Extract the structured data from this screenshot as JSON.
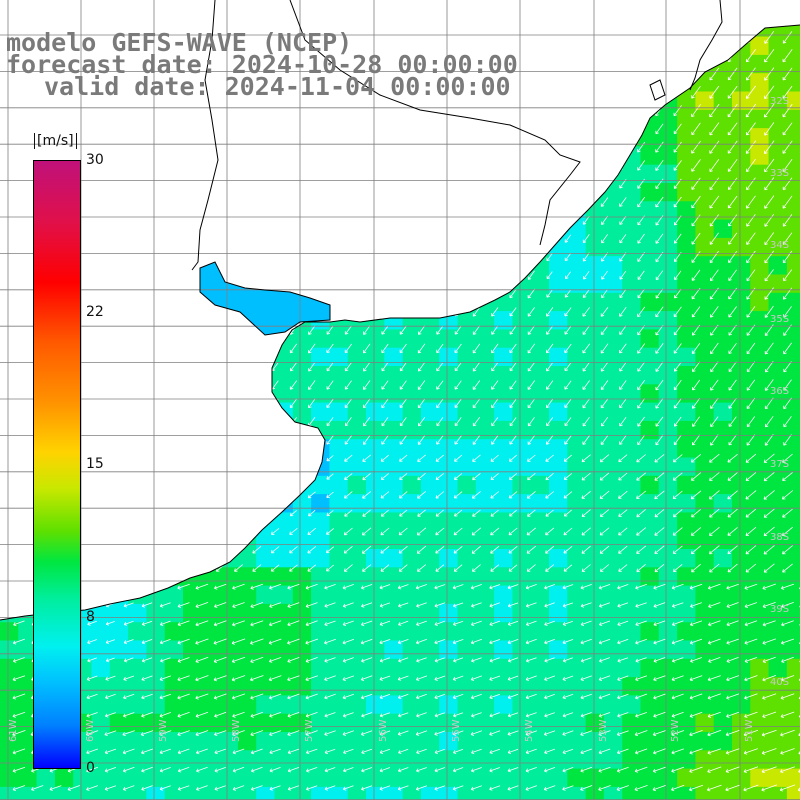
{
  "titles": {
    "line1": "modelo GEFS-WAVE (NCEP)",
    "line2": "forecast date: 2024-10-28 00:00:00",
    "line3": "valid date: 2024-11-04 00:00:00"
  },
  "colorbar": {
    "unit": "[m/s]",
    "min": 0,
    "max": 30,
    "ticks": [
      "30",
      "22",
      "15",
      "8",
      "0"
    ],
    "colors": [
      "#0000ff",
      "#0080ff",
      "#00bfff",
      "#00f0f0",
      "#00ee9c",
      "#00e640",
      "#5ee000",
      "#c8e800",
      "#ffd300",
      "#ff9400",
      "#ff5a00",
      "#ff0000",
      "#e0104a",
      "#c0117a"
    ]
  },
  "map": {
    "field": "wind speed (m/s) with direction arrows",
    "region": "South-western Atlantic off southern Brazil, Uruguay and Argentina",
    "dominant_wind_direction": "from north-east (arrows point south-west)",
    "lon_labels": [
      "61W",
      "60W",
      "59W",
      "58W",
      "57W",
      "56W",
      "55W",
      "54W",
      "53W",
      "52W",
      "51W"
    ],
    "lat_labels": [
      "32S",
      "33S",
      "34S",
      "35S",
      "36S",
      "37S",
      "38S",
      "39S",
      "40S"
    ],
    "colors": {
      "land": "#ffffff",
      "coastline": "#000000",
      "gridline": "#7f7f7f",
      "label": "#c8c8c8"
    }
  }
}
